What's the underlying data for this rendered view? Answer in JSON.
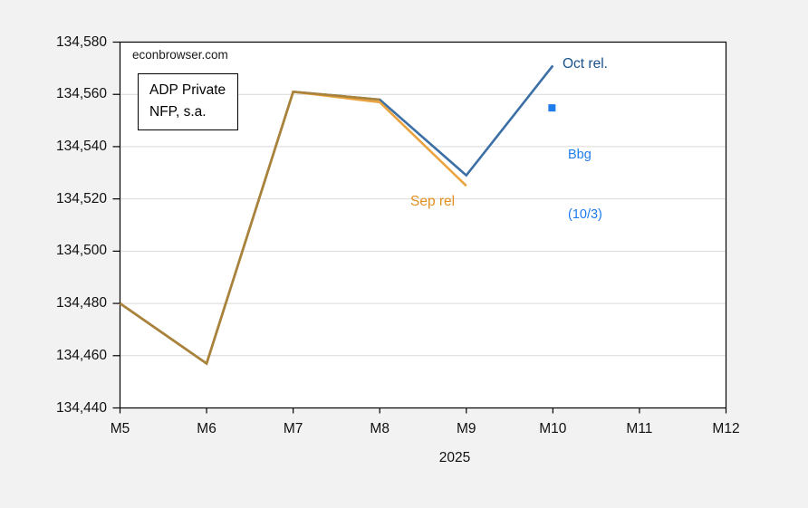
{
  "annotations": {
    "watermark": "econbrowser.com",
    "box_line1": "ADP Private",
    "box_line2": "NFP, s.a.",
    "oct_label": "Oct rel.",
    "sep_label": "Sep rel",
    "bbg_line1": "Bbg",
    "bbg_line2": "(10/3)",
    "x_axis_title": "2025"
  },
  "chart_data": {
    "type": "line",
    "title": "ADP Private NFP, s.a.",
    "watermark": "econbrowser.com",
    "xlabel": "2025",
    "ylabel": "",
    "x_tick_labels": [
      "M5",
      "M6",
      "M7",
      "M8",
      "M9",
      "M10",
      "M11",
      "M12"
    ],
    "x_months": [
      5,
      6,
      7,
      8,
      9,
      10,
      11,
      12
    ],
    "ylim": [
      134440,
      134580
    ],
    "y_tick_values": [
      134440,
      134460,
      134480,
      134500,
      134520,
      134540,
      134560,
      134580
    ],
    "y_tick_labels": [
      "134,440",
      "134,460",
      "134,480",
      "134,500",
      "134,520",
      "134,540",
      "134,560",
      "134,580"
    ],
    "grid": "horizontal-only",
    "legend_position": "inline-annotations",
    "series": [
      {
        "name": "Oct rel.",
        "color": "#3C6FA6",
        "label_color": "#17518C",
        "months": [
          5,
          6,
          7,
          8,
          9,
          10
        ],
        "values": [
          134480,
          134457,
          134561,
          134558,
          134529,
          134571
        ]
      },
      {
        "name": "Sep rel",
        "color": "#EAA33E",
        "label_color": "#E2901F",
        "months": [
          5,
          6,
          7,
          8,
          9
        ],
        "values": [
          134480,
          134457,
          134561,
          134557,
          134525
        ]
      }
    ],
    "point_series": {
      "name": "Bbg (10/3)",
      "color": "#1E7CEC",
      "month": 10,
      "value": 134555,
      "marker": "square"
    },
    "overlap": {
      "note": "Series coincide from M5 to M8 and render as a blended brown line",
      "color": "#A9823C",
      "months": [
        5,
        6,
        7,
        8
      ],
      "values": [
        134480,
        134457,
        134561,
        134558
      ]
    },
    "colors": {
      "figure_background": "#F2F2F2",
      "plot_background": "#FFFFFF",
      "gridline": "#D9D9D9",
      "frame": "#000000",
      "text": "#111111"
    }
  }
}
